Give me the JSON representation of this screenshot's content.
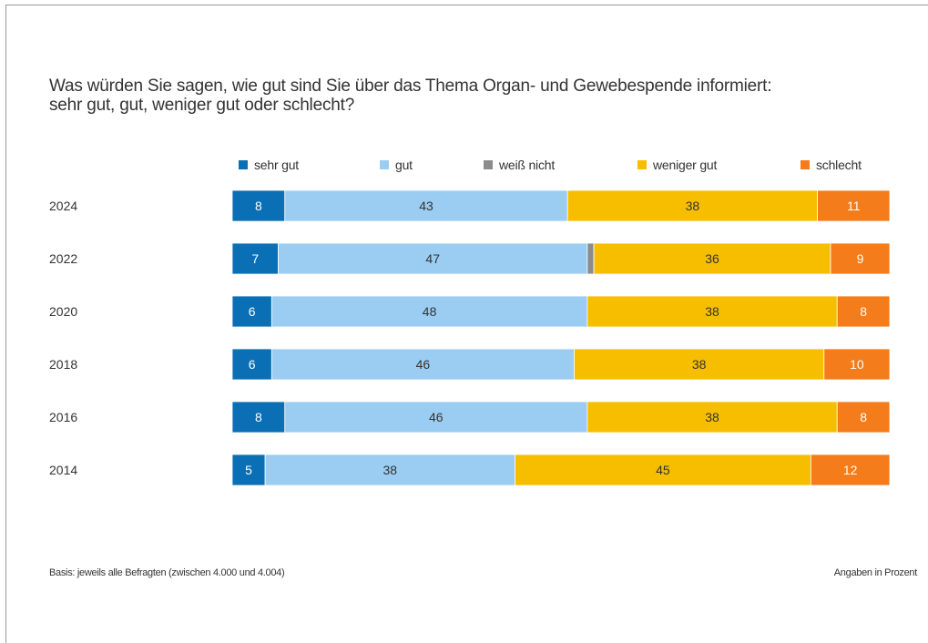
{
  "title": {
    "line1": "Was würden Sie sagen, wie gut sind Sie über das Thema Organ- und Gewebespende informiert:",
    "line2": "sehr gut, gut, weniger gut oder schlecht?"
  },
  "footer": {
    "basis": "Basis: jeweils alle Befragten (zwischen 4.000 und 4.004)",
    "unit_note": "Angaben in Prozent"
  },
  "chart_data": {
    "type": "bar",
    "orientation": "horizontal",
    "stacked": true,
    "categories": [
      "2024",
      "2022",
      "2020",
      "2018",
      "2016",
      "2014"
    ],
    "series": [
      {
        "name": "sehr gut",
        "color": "#0a6fb4",
        "values": [
          8,
          7,
          6,
          6,
          8,
          5
        ]
      },
      {
        "name": "gut",
        "color": "#9bcdf2",
        "values": [
          43,
          47,
          48,
          46,
          46,
          38
        ]
      },
      {
        "name": "weiß nicht",
        "color": "#8c8c8c",
        "values": [
          0,
          1,
          0,
          0,
          0,
          0
        ]
      },
      {
        "name": "weniger gut",
        "color": "#f7be00",
        "values": [
          38,
          36,
          38,
          38,
          38,
          45
        ]
      },
      {
        "name": "schlecht",
        "color": "#f47c1a",
        "values": [
          11,
          9,
          8,
          10,
          8,
          12
        ]
      }
    ],
    "label_colors": [
      "#ffffff",
      "#333333",
      "#333333",
      "#333333",
      "#ffffff"
    ],
    "show_value_labels": [
      true,
      true,
      false,
      true,
      true
    ],
    "xlim": [
      0,
      100
    ],
    "grid": false,
    "legend": "top"
  }
}
